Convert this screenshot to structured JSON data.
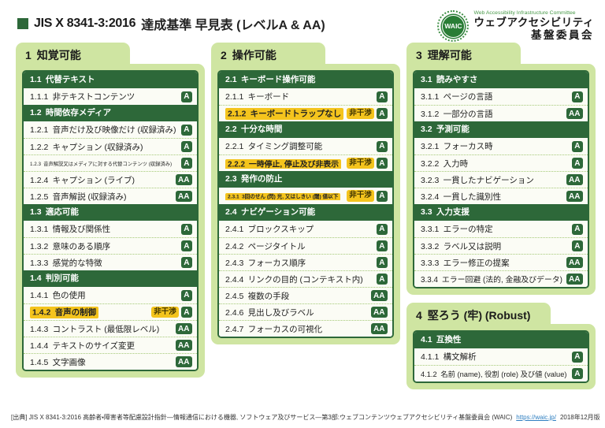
{
  "header": {
    "title_code": "JIS X 8341-3:2016",
    "title_rest": "達成基準 早見表 (レベルA & AA)",
    "logo": {
      "mark": "WAIC",
      "en": "Web Accessibility Infrastructure Committee",
      "jp_line1": "ウェブアクセシビリティ",
      "jp_line2": "基盤委員会"
    }
  },
  "badges": {
    "noninterference": "非干渉"
  },
  "columns": [
    [
      {
        "num": "1",
        "title": "知覚可能",
        "sections": [
          {
            "num": "1.1",
            "title": "代替テキスト",
            "items": [
              {
                "num": "1.1.1",
                "text": "非テキストコンテンツ",
                "level": "A"
              }
            ]
          },
          {
            "num": "1.2",
            "title": "時間依存メディア",
            "items": [
              {
                "num": "1.2.1",
                "text": "音声だけ及び映像だけ (収録済み)",
                "level": "A"
              },
              {
                "num": "1.2.2",
                "text": "キャプション (収録済み)",
                "level": "A"
              },
              {
                "num": "1.2.3",
                "text": "音声解説又はメディアに対する代替コンテンツ (収録済み)",
                "level": "A"
              },
              {
                "num": "1.2.4",
                "text": "キャプション (ライブ)",
                "level": "AA"
              },
              {
                "num": "1.2.5",
                "text": "音声解説 (収録済み)",
                "level": "AA"
              }
            ]
          },
          {
            "num": "1.3",
            "title": "適応可能",
            "items": [
              {
                "num": "1.3.1",
                "text": "情報及び関係性",
                "level": "A"
              },
              {
                "num": "1.3.2",
                "text": "意味のある順序",
                "level": "A"
              },
              {
                "num": "1.3.3",
                "text": "感覚的な特徴",
                "level": "A"
              }
            ]
          },
          {
            "num": "1.4",
            "title": "判別可能",
            "items": [
              {
                "num": "1.4.1",
                "text": "色の使用",
                "level": "A"
              },
              {
                "num": "1.4.2",
                "text": "音声の制御",
                "level": "A",
                "highlight": true,
                "noninterference": true
              },
              {
                "num": "1.4.3",
                "text": "コントラスト (最低限レベル)",
                "level": "AA"
              },
              {
                "num": "1.4.4",
                "text": "テキストのサイズ変更",
                "level": "AA"
              },
              {
                "num": "1.4.5",
                "text": "文字画像",
                "level": "AA"
              }
            ]
          }
        ]
      }
    ],
    [
      {
        "num": "2",
        "title": "操作可能",
        "sections": [
          {
            "num": "2.1",
            "title": "キーボード操作可能",
            "items": [
              {
                "num": "2.1.1",
                "text": "キーボード",
                "level": "A"
              },
              {
                "num": "2.1.2",
                "text": "キーボードトラップなし",
                "level": "A",
                "highlight": true,
                "noninterference": true
              }
            ]
          },
          {
            "num": "2.2",
            "title": "十分な時間",
            "items": [
              {
                "num": "2.2.1",
                "text": "タイミング調整可能",
                "level": "A"
              },
              {
                "num": "2.2.2",
                "text": "一時停止, 停止及び非表示",
                "level": "A",
                "highlight": true,
                "noninterference": true
              }
            ]
          },
          {
            "num": "2.3",
            "title": "発作の防止",
            "items": [
              {
                "num": "2.3.1",
                "text": "3回のせん (閃) 光, 又はしきい (閾) 値以下",
                "level": "A",
                "highlight": true,
                "noninterference": true
              }
            ]
          },
          {
            "num": "2.4",
            "title": "ナビゲーション可能",
            "items": [
              {
                "num": "2.4.1",
                "text": "ブロックスキップ",
                "level": "A"
              },
              {
                "num": "2.4.2",
                "text": "ページタイトル",
                "level": "A"
              },
              {
                "num": "2.4.3",
                "text": "フォーカス順序",
                "level": "A"
              },
              {
                "num": "2.4.4",
                "text": "リンクの目的 (コンテキスト内)",
                "level": "A"
              },
              {
                "num": "2.4.5",
                "text": "複数の手段",
                "level": "AA"
              },
              {
                "num": "2.4.6",
                "text": "見出し及びラベル",
                "level": "AA"
              },
              {
                "num": "2.4.7",
                "text": "フォーカスの可視化",
                "level": "AA"
              }
            ]
          }
        ]
      }
    ],
    [
      {
        "num": "3",
        "title": "理解可能",
        "sections": [
          {
            "num": "3.1",
            "title": "読みやすさ",
            "items": [
              {
                "num": "3.1.1",
                "text": "ページの言語",
                "level": "A"
              },
              {
                "num": "3.1.2",
                "text": "一部分の言語",
                "level": "AA"
              }
            ]
          },
          {
            "num": "3.2",
            "title": "予測可能",
            "items": [
              {
                "num": "3.2.1",
                "text": "フォーカス時",
                "level": "A"
              },
              {
                "num": "3.2.2",
                "text": "入力時",
                "level": "A"
              },
              {
                "num": "3.2.3",
                "text": "一貫したナビゲーション",
                "level": "AA"
              },
              {
                "num": "3.2.4",
                "text": "一貫した識別性",
                "level": "AA"
              }
            ]
          },
          {
            "num": "3.3",
            "title": "入力支援",
            "items": [
              {
                "num": "3.3.1",
                "text": "エラーの特定",
                "level": "A"
              },
              {
                "num": "3.3.2",
                "text": "ラベル又は説明",
                "level": "A"
              },
              {
                "num": "3.3.3",
                "text": "エラー修正の提案",
                "level": "AA"
              },
              {
                "num": "3.3.4",
                "text": "エラー回避 (法的, 金融及びデータ)",
                "level": "AA"
              }
            ]
          }
        ]
      },
      {
        "num": "4",
        "title": "堅ろう (牢) (Robust)",
        "sections": [
          {
            "num": "4.1",
            "title": "互換性",
            "items": [
              {
                "num": "4.1.1",
                "text": "構文解析",
                "level": "A"
              },
              {
                "num": "4.1.2",
                "text": "名前 (name), 役割 (role) 及び値 (value)",
                "level": "A"
              }
            ]
          }
        ]
      }
    ]
  ],
  "footer": {
    "source": "[出典] JIS X 8341-3:2016 高齢者・障害者等配慮設計指針―情報通信における機器, ソフトウェア及びサービス―第3部:ウェブコンテンツ",
    "org": "ウェブアクセシビリティ基盤委員会 (WAIC)",
    "url": "https://waic.jp/",
    "edition": "2018年12月版"
  },
  "colors": {
    "dark_green": "#2d6839",
    "light_green": "#cfe5a2",
    "yellow": "#f4c41d",
    "row_bg": "#fbfcf5",
    "separator": "#a6ca79",
    "link_blue": "#2f7fc1",
    "logo_green": "#2a7d36"
  }
}
